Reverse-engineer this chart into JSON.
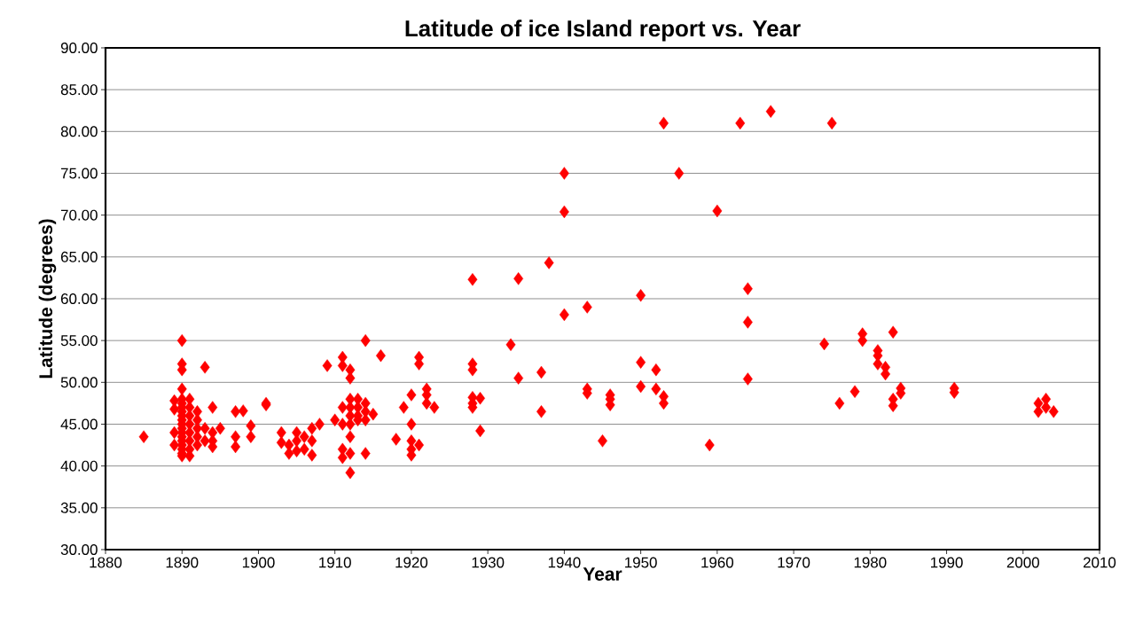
{
  "chart_data": {
    "type": "scatter",
    "title": "Latitude of ice Island report vs. Year",
    "xlabel": "Year",
    "ylabel": "Latitude (degrees)",
    "xlim": [
      1880,
      2010
    ],
    "xticks": [
      1880,
      1890,
      1900,
      1910,
      1920,
      1930,
      1940,
      1950,
      1960,
      1970,
      1980,
      1990,
      2000,
      2010
    ],
    "ylim": [
      30,
      90
    ],
    "yticks": [
      {
        "value": 30,
        "label": "30.00"
      },
      {
        "value": 35,
        "label": "35.00"
      },
      {
        "value": 40,
        "label": "40.00"
      },
      {
        "value": 45,
        "label": "45.00"
      },
      {
        "value": 50,
        "label": "50.00"
      },
      {
        "value": 55,
        "label": "55.00"
      },
      {
        "value": 60,
        "label": "60.00"
      },
      {
        "value": 65,
        "label": "65.00"
      },
      {
        "value": 70,
        "label": "70.00"
      },
      {
        "value": 75,
        "label": "75.00"
      },
      {
        "value": 80,
        "label": "80.00"
      },
      {
        "value": 85,
        "label": "85.00"
      },
      {
        "value": 90,
        "label": "90.00"
      }
    ],
    "grid": "y",
    "marker": "diamond",
    "series": [
      {
        "color": "#ff0000",
        "x": [
          1885,
          1890,
          1890,
          1890,
          1890,
          1890,
          1890,
          1890,
          1890,
          1890,
          1890,
          1890,
          1890,
          1890,
          1890,
          1890,
          1890,
          1890,
          1890,
          1890,
          1889,
          1889,
          1889,
          1889,
          1891,
          1891,
          1891,
          1891,
          1891,
          1891,
          1891,
          1891,
          1892,
          1892,
          1892,
          1892,
          1892,
          1893,
          1893,
          1893,
          1894,
          1894,
          1894,
          1894,
          1895,
          1897,
          1897,
          1897,
          1898,
          1899,
          1899,
          1901,
          1901,
          1903,
          1903,
          1904,
          1904,
          1905,
          1905,
          1905,
          1906,
          1906,
          1907,
          1907,
          1907,
          1908,
          1909,
          1910,
          1911,
          1911,
          1911,
          1911,
          1911,
          1911,
          1912,
          1912,
          1912,
          1912,
          1912,
          1912,
          1912,
          1912,
          1912,
          1913,
          1913,
          1913,
          1913,
          1914,
          1914,
          1914,
          1914,
          1914,
          1915,
          1916,
          1918,
          1919,
          1920,
          1920,
          1920,
          1920,
          1920,
          1921,
          1921,
          1921,
          1922,
          1922,
          1922,
          1923,
          1928,
          1928,
          1928,
          1928,
          1928,
          1928,
          1929,
          1929,
          1933,
          1934,
          1934,
          1937,
          1937,
          1938,
          1940,
          1940,
          1940,
          1943,
          1943,
          1943,
          1945,
          1946,
          1946,
          1946,
          1950,
          1950,
          1950,
          1952,
          1952,
          1953,
          1953,
          1953,
          1955,
          1959,
          1960,
          1963,
          1964,
          1964,
          1964,
          1967,
          1974,
          1975,
          1976,
          1978,
          1979,
          1979,
          1981,
          1981,
          1981,
          1982,
          1982,
          1983,
          1983,
          1983,
          1984,
          1984,
          1991,
          1991,
          2002,
          2002,
          2003,
          2003,
          2004
        ],
        "values": [
          43.5,
          55.0,
          52.2,
          51.5,
          49.2,
          48.0,
          47.5,
          47.0,
          46.5,
          46.0,
          45.5,
          45.0,
          44.5,
          44.0,
          43.5,
          43.0,
          42.5,
          42.0,
          41.5,
          41.2,
          47.8,
          46.8,
          44.0,
          42.5,
          48.0,
          47.0,
          46.0,
          45.0,
          44.0,
          43.0,
          42.0,
          41.2,
          46.5,
          45.5,
          44.5,
          43.5,
          42.5,
          51.8,
          44.5,
          43.0,
          47.0,
          44.0,
          43.0,
          42.3,
          44.5,
          46.5,
          43.5,
          42.3,
          46.6,
          44.8,
          43.5,
          47.5,
          47.3,
          44.0,
          42.8,
          42.5,
          41.5,
          44.0,
          43.0,
          41.8,
          43.5,
          42.0,
          44.5,
          43.0,
          41.3,
          45.0,
          52.0,
          45.5,
          53.0,
          52.0,
          47.0,
          45.0,
          42.0,
          41.0,
          51.5,
          50.5,
          48.0,
          47.0,
          46.0,
          45.0,
          43.5,
          41.5,
          39.2,
          48.0,
          47.0,
          46.0,
          45.5,
          55.0,
          47.5,
          46.5,
          45.5,
          41.5,
          46.2,
          53.2,
          43.2,
          47.0,
          48.5,
          45.0,
          43.0,
          42.0,
          41.3,
          53.0,
          52.2,
          42.5,
          49.2,
          48.5,
          47.5,
          47.0,
          62.3,
          52.2,
          51.5,
          48.2,
          47.5,
          47.0,
          48.1,
          44.2,
          54.5,
          62.4,
          50.5,
          51.2,
          46.5,
          64.3,
          75.0,
          70.4,
          58.1,
          59.0,
          49.2,
          48.7,
          43.0,
          48.5,
          48.0,
          47.3,
          60.4,
          52.4,
          49.5,
          51.5,
          49.2,
          81.0,
          48.3,
          47.5,
          75.0,
          42.5,
          70.5,
          81.0,
          61.2,
          57.2,
          50.4,
          82.4,
          54.6,
          81.0,
          47.5,
          48.9,
          55.8,
          55.0,
          53.8,
          53.2,
          52.2,
          51.8,
          51.0,
          56.0,
          48.0,
          47.2,
          49.3,
          48.7,
          49.3,
          48.8,
          47.5,
          46.5,
          48.0,
          47.0,
          46.5
        ]
      }
    ]
  }
}
